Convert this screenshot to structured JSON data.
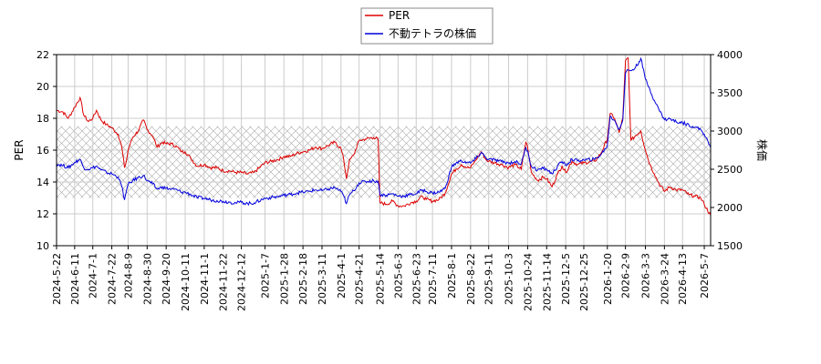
{
  "chart_data": {
    "type": "line",
    "xlabel": "",
    "y_left_label": "PER",
    "y_right_label": "株価",
    "y_left_lim": [
      10,
      22
    ],
    "y_left_ticks": [
      10,
      12,
      14,
      16,
      18,
      20,
      22
    ],
    "y_right_lim": [
      1500,
      4000
    ],
    "y_right_ticks": [
      1500,
      2000,
      2500,
      3000,
      3500,
      4000
    ],
    "x_start": "2024-05-22",
    "x_end": "2026-05-14",
    "x_ticks": [
      "2024-5-22",
      "2024-6-11",
      "2024-7-1",
      "2024-7-22",
      "2024-8-9",
      "2024-8-30",
      "2024-9-20",
      "2024-10-11",
      "2024-11-1",
      "2024-11-22",
      "2024-12-12",
      "2025-1-7",
      "2025-1-28",
      "2025-2-18",
      "2025-3-11",
      "2025-4-1",
      "2025-4-21",
      "2025-5-14",
      "2025-6-3",
      "2025-6-23",
      "2025-7-11",
      "2025-8-1",
      "2025-8-22",
      "2025-9-11",
      "2025-10-3",
      "2025-10-24",
      "2025-11-14",
      "2025-12-5",
      "2025-12-25",
      "2026-1-20",
      "2026-2-9",
      "2026-3-3",
      "2026-3-24",
      "2026-4-13",
      "2026-5-7"
    ],
    "grid": true,
    "band": {
      "axis": "left",
      "from": 13.0,
      "to": 17.5
    },
    "legend_position": "top-center",
    "series": [
      {
        "name": "PER",
        "axis": "left",
        "color": "#dd0000",
        "points": [
          [
            "2024-05-22",
            18.5
          ],
          [
            "2024-05-29",
            18.4
          ],
          [
            "2024-06-04",
            18.0
          ],
          [
            "2024-06-11",
            18.7
          ],
          [
            "2024-06-17",
            19.3
          ],
          [
            "2024-06-21",
            18.2
          ],
          [
            "2024-06-26",
            17.8
          ],
          [
            "2024-07-01",
            18.0
          ],
          [
            "2024-07-05",
            18.5
          ],
          [
            "2024-07-10",
            17.9
          ],
          [
            "2024-07-16",
            17.6
          ],
          [
            "2024-07-22",
            17.4
          ],
          [
            "2024-07-29",
            17.0
          ],
          [
            "2024-08-02",
            16.2
          ],
          [
            "2024-08-05",
            14.9
          ],
          [
            "2024-08-07",
            15.3
          ],
          [
            "2024-08-09",
            16.0
          ],
          [
            "2024-08-14",
            16.8
          ],
          [
            "2024-08-20",
            17.2
          ],
          [
            "2024-08-26",
            17.9
          ],
          [
            "2024-08-30",
            17.3
          ],
          [
            "2024-09-05",
            16.9
          ],
          [
            "2024-09-10",
            16.2
          ],
          [
            "2024-09-16",
            16.5
          ],
          [
            "2024-09-20",
            16.4
          ],
          [
            "2024-09-26",
            16.4
          ],
          [
            "2024-10-02",
            16.2
          ],
          [
            "2024-10-07",
            15.9
          ],
          [
            "2024-10-11",
            15.9
          ],
          [
            "2024-10-17",
            15.5
          ],
          [
            "2024-10-24",
            15.0
          ],
          [
            "2024-11-01",
            15.1
          ],
          [
            "2024-11-08",
            14.9
          ],
          [
            "2024-11-15",
            14.9
          ],
          [
            "2024-11-22",
            14.7
          ],
          [
            "2024-11-29",
            14.7
          ],
          [
            "2024-12-06",
            14.6
          ],
          [
            "2024-12-12",
            14.6
          ],
          [
            "2024-12-19",
            14.5
          ],
          [
            "2024-12-26",
            14.6
          ],
          [
            "2025-01-07",
            15.2
          ],
          [
            "2025-01-14",
            15.3
          ],
          [
            "2025-01-21",
            15.4
          ],
          [
            "2025-01-28",
            15.6
          ],
          [
            "2025-02-04",
            15.6
          ],
          [
            "2025-02-11",
            15.8
          ],
          [
            "2025-02-18",
            15.9
          ],
          [
            "2025-02-25",
            16.0
          ],
          [
            "2025-03-04",
            16.2
          ],
          [
            "2025-03-11",
            16.1
          ],
          [
            "2025-03-18",
            16.3
          ],
          [
            "2025-03-25",
            16.5
          ],
          [
            "2025-04-01",
            16.1
          ],
          [
            "2025-04-04",
            15.4
          ],
          [
            "2025-04-07",
            14.2
          ],
          [
            "2025-04-10",
            15.3
          ],
          [
            "2025-04-15",
            15.7
          ],
          [
            "2025-04-21",
            16.6
          ],
          [
            "2025-04-28",
            16.7
          ],
          [
            "2025-05-07",
            16.8
          ],
          [
            "2025-05-12",
            16.7
          ],
          [
            "2025-05-14",
            12.7
          ],
          [
            "2025-05-21",
            12.6
          ],
          [
            "2025-05-28",
            12.8
          ],
          [
            "2025-06-03",
            12.5
          ],
          [
            "2025-06-10",
            12.5
          ],
          [
            "2025-06-17",
            12.7
          ],
          [
            "2025-06-23",
            12.8
          ],
          [
            "2025-06-30",
            13.1
          ],
          [
            "2025-07-04",
            12.9
          ],
          [
            "2025-07-11",
            12.8
          ],
          [
            "2025-07-18",
            12.9
          ],
          [
            "2025-07-25",
            13.3
          ],
          [
            "2025-08-01",
            14.5
          ],
          [
            "2025-08-06",
            14.8
          ],
          [
            "2025-08-12",
            15.1
          ],
          [
            "2025-08-18",
            14.9
          ],
          [
            "2025-08-22",
            14.9
          ],
          [
            "2025-08-28",
            15.4
          ],
          [
            "2025-09-03",
            15.9
          ],
          [
            "2025-09-08",
            15.4
          ],
          [
            "2025-09-11",
            15.3
          ],
          [
            "2025-09-18",
            15.2
          ],
          [
            "2025-09-25",
            15.1
          ],
          [
            "2025-10-03",
            14.9
          ],
          [
            "2025-10-10",
            15.1
          ],
          [
            "2025-10-17",
            14.8
          ],
          [
            "2025-10-22",
            16.5
          ],
          [
            "2025-10-24",
            16.2
          ],
          [
            "2025-10-28",
            14.6
          ],
          [
            "2025-11-04",
            14.1
          ],
          [
            "2025-11-10",
            14.3
          ],
          [
            "2025-11-14",
            14.2
          ],
          [
            "2025-11-20",
            13.7
          ],
          [
            "2025-11-26",
            14.5
          ],
          [
            "2025-12-01",
            15.0
          ],
          [
            "2025-12-05",
            14.6
          ],
          [
            "2025-12-12",
            15.3
          ],
          [
            "2025-12-18",
            15.1
          ],
          [
            "2025-12-25",
            15.2
          ],
          [
            "2026-01-06",
            15.3
          ],
          [
            "2026-01-13",
            15.8
          ],
          [
            "2026-01-20",
            16.7
          ],
          [
            "2026-01-23",
            18.3
          ],
          [
            "2026-01-28",
            18.0
          ],
          [
            "2026-02-02",
            17.1
          ],
          [
            "2026-02-06",
            18.0
          ],
          [
            "2026-02-09",
            21.6
          ],
          [
            "2026-02-12",
            21.8
          ],
          [
            "2026-02-15",
            16.6
          ],
          [
            "2026-02-20",
            16.9
          ],
          [
            "2026-02-26",
            17.2
          ],
          [
            "2026-03-03",
            16.0
          ],
          [
            "2026-03-08",
            15.1
          ],
          [
            "2026-03-13",
            14.5
          ],
          [
            "2026-03-18",
            13.9
          ],
          [
            "2026-03-24",
            13.4
          ],
          [
            "2026-03-30",
            13.7
          ],
          [
            "2026-04-06",
            13.5
          ],
          [
            "2026-04-13",
            13.5
          ],
          [
            "2026-04-20",
            13.2
          ],
          [
            "2026-04-27",
            13.1
          ],
          [
            "2026-05-03",
            13.0
          ],
          [
            "2026-05-07",
            12.6
          ],
          [
            "2026-05-14",
            11.9
          ]
        ]
      },
      {
        "name": "不動テトラの株価",
        "axis": "right",
        "color": "#0000dd",
        "points": [
          [
            "2024-05-22",
            2570
          ],
          [
            "2024-05-29",
            2550
          ],
          [
            "2024-06-04",
            2520
          ],
          [
            "2024-06-11",
            2590
          ],
          [
            "2024-06-17",
            2630
          ],
          [
            "2024-06-21",
            2520
          ],
          [
            "2024-06-26",
            2500
          ],
          [
            "2024-07-01",
            2520
          ],
          [
            "2024-07-05",
            2540
          ],
          [
            "2024-07-10",
            2490
          ],
          [
            "2024-07-16",
            2460
          ],
          [
            "2024-07-22",
            2440
          ],
          [
            "2024-07-29",
            2400
          ],
          [
            "2024-08-02",
            2280
          ],
          [
            "2024-08-05",
            2100
          ],
          [
            "2024-08-07",
            2210
          ],
          [
            "2024-08-09",
            2300
          ],
          [
            "2024-08-14",
            2350
          ],
          [
            "2024-08-20",
            2390
          ],
          [
            "2024-08-26",
            2420
          ],
          [
            "2024-08-30",
            2350
          ],
          [
            "2024-09-05",
            2310
          ],
          [
            "2024-09-10",
            2240
          ],
          [
            "2024-09-16",
            2270
          ],
          [
            "2024-09-20",
            2250
          ],
          [
            "2024-09-26",
            2240
          ],
          [
            "2024-10-02",
            2230
          ],
          [
            "2024-10-07",
            2200
          ],
          [
            "2024-10-11",
            2200
          ],
          [
            "2024-10-17",
            2170
          ],
          [
            "2024-10-24",
            2130
          ],
          [
            "2024-11-01",
            2120
          ],
          [
            "2024-11-08",
            2100
          ],
          [
            "2024-11-15",
            2090
          ],
          [
            "2024-11-22",
            2080
          ],
          [
            "2024-11-29",
            2070
          ],
          [
            "2024-12-06",
            2060
          ],
          [
            "2024-12-12",
            2070
          ],
          [
            "2024-12-19",
            2050
          ],
          [
            "2024-12-26",
            2060
          ],
          [
            "2025-01-07",
            2120
          ],
          [
            "2025-01-14",
            2130
          ],
          [
            "2025-01-21",
            2140
          ],
          [
            "2025-01-28",
            2160
          ],
          [
            "2025-02-04",
            2170
          ],
          [
            "2025-02-11",
            2190
          ],
          [
            "2025-02-18",
            2200
          ],
          [
            "2025-02-25",
            2210
          ],
          [
            "2025-03-04",
            2230
          ],
          [
            "2025-03-11",
            2220
          ],
          [
            "2025-03-18",
            2240
          ],
          [
            "2025-03-25",
            2260
          ],
          [
            "2025-04-01",
            2210
          ],
          [
            "2025-04-04",
            2150
          ],
          [
            "2025-04-07",
            2050
          ],
          [
            "2025-04-10",
            2160
          ],
          [
            "2025-04-15",
            2220
          ],
          [
            "2025-04-21",
            2320
          ],
          [
            "2025-04-28",
            2340
          ],
          [
            "2025-05-07",
            2350
          ],
          [
            "2025-05-12",
            2340
          ],
          [
            "2025-05-14",
            2170
          ],
          [
            "2025-05-21",
            2160
          ],
          [
            "2025-05-28",
            2180
          ],
          [
            "2025-06-03",
            2150
          ],
          [
            "2025-06-10",
            2150
          ],
          [
            "2025-06-17",
            2170
          ],
          [
            "2025-06-23",
            2180
          ],
          [
            "2025-06-30",
            2230
          ],
          [
            "2025-07-04",
            2210
          ],
          [
            "2025-07-11",
            2190
          ],
          [
            "2025-07-18",
            2200
          ],
          [
            "2025-07-25",
            2250
          ],
          [
            "2025-08-01",
            2530
          ],
          [
            "2025-08-06",
            2580
          ],
          [
            "2025-08-12",
            2610
          ],
          [
            "2025-08-18",
            2590
          ],
          [
            "2025-08-22",
            2580
          ],
          [
            "2025-08-28",
            2640
          ],
          [
            "2025-09-03",
            2720
          ],
          [
            "2025-09-08",
            2650
          ],
          [
            "2025-09-11",
            2630
          ],
          [
            "2025-09-18",
            2620
          ],
          [
            "2025-09-25",
            2600
          ],
          [
            "2025-10-03",
            2580
          ],
          [
            "2025-10-10",
            2600
          ],
          [
            "2025-10-17",
            2570
          ],
          [
            "2025-10-22",
            2780
          ],
          [
            "2025-10-24",
            2740
          ],
          [
            "2025-10-28",
            2540
          ],
          [
            "2025-11-04",
            2490
          ],
          [
            "2025-11-10",
            2510
          ],
          [
            "2025-11-14",
            2500
          ],
          [
            "2025-11-20",
            2440
          ],
          [
            "2025-11-26",
            2540
          ],
          [
            "2025-12-01",
            2600
          ],
          [
            "2025-12-05",
            2550
          ],
          [
            "2025-12-12",
            2630
          ],
          [
            "2025-12-18",
            2610
          ],
          [
            "2025-12-25",
            2620
          ],
          [
            "2026-01-06",
            2630
          ],
          [
            "2026-01-13",
            2690
          ],
          [
            "2026-01-20",
            2810
          ],
          [
            "2026-01-23",
            3190
          ],
          [
            "2026-01-28",
            3140
          ],
          [
            "2026-02-02",
            3020
          ],
          [
            "2026-02-06",
            3140
          ],
          [
            "2026-02-09",
            3760
          ],
          [
            "2026-02-12",
            3800
          ],
          [
            "2026-02-15",
            3790
          ],
          [
            "2026-02-20",
            3830
          ],
          [
            "2026-02-26",
            3950
          ],
          [
            "2026-03-03",
            3680
          ],
          [
            "2026-03-08",
            3540
          ],
          [
            "2026-03-13",
            3400
          ],
          [
            "2026-03-18",
            3280
          ],
          [
            "2026-03-24",
            3150
          ],
          [
            "2026-03-30",
            3160
          ],
          [
            "2026-04-06",
            3120
          ],
          [
            "2026-04-13",
            3110
          ],
          [
            "2026-04-20",
            3080
          ],
          [
            "2026-04-27",
            3050
          ],
          [
            "2026-05-03",
            3020
          ],
          [
            "2026-05-07",
            2960
          ],
          [
            "2026-05-14",
            2780
          ]
        ]
      }
    ]
  }
}
